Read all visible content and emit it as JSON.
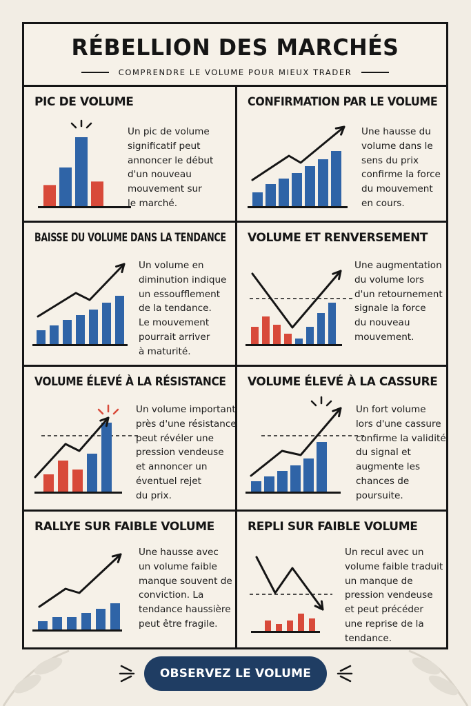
{
  "header": {
    "title": "RÉBELLION DES MARCHÉS",
    "subtitle": "COMPRENDRE LE VOLUME POUR MIEUX TRADER"
  },
  "colors": {
    "blue": "#2f64a7",
    "red": "#d84a3a",
    "ink": "#151515",
    "cta": "#1f3d63",
    "background": "#f2ede4"
  },
  "cells": [
    {
      "id": "pic",
      "title": "PIC DE VOLUME",
      "lines": [
        "Un pic de volume",
        "significatif peut",
        "annoncer le début",
        "d'un nouveau",
        "mouvement sur",
        "le marché."
      ],
      "bars": [
        {
          "v": 30,
          "c": "red"
        },
        {
          "v": 55,
          "c": "blue"
        },
        {
          "v": 98,
          "c": "blue"
        },
        {
          "v": 35,
          "c": "red"
        }
      ],
      "trend_arrow": false,
      "dashed_level": false,
      "spike_marks": "above-peak"
    },
    {
      "id": "confirmation",
      "title": "CONFIRMATION PAR LE VOLUME",
      "lines": [
        "Une hausse du",
        "volume dans le",
        "sens du prix",
        "confirme la force",
        "du mouvement",
        "en cours."
      ],
      "bars": [
        {
          "v": 20,
          "c": "blue"
        },
        {
          "v": 32,
          "c": "blue"
        },
        {
          "v": 40,
          "c": "blue"
        },
        {
          "v": 48,
          "c": "blue"
        },
        {
          "v": 58,
          "c": "blue"
        },
        {
          "v": 68,
          "c": "blue"
        },
        {
          "v": 80,
          "c": "blue"
        }
      ],
      "trend_arrow": "up",
      "dashed_level": false,
      "spike_marks": null
    },
    {
      "id": "baisse",
      "title": "BAISSE DU VOLUME DANS LA TENDANCE",
      "lines": [
        "Un volume en",
        "diminution indique",
        "un essoufflement",
        "de la tendance.",
        "Le mouvement",
        "pourrait arriver",
        "à maturité."
      ],
      "bars": [
        {
          "v": 20,
          "c": "blue"
        },
        {
          "v": 27,
          "c": "blue"
        },
        {
          "v": 35,
          "c": "blue"
        },
        {
          "v": 42,
          "c": "blue"
        },
        {
          "v": 50,
          "c": "blue"
        },
        {
          "v": 60,
          "c": "blue"
        },
        {
          "v": 70,
          "c": "blue"
        }
      ],
      "trend_arrow": "up",
      "dashed_level": false,
      "spike_marks": null
    },
    {
      "id": "renversement",
      "title": "VOLUME ET RENVERSEMENT",
      "lines": [
        "Une augmentation",
        "du volume lors",
        "d'un retournement",
        "signale la force",
        "du nouveau",
        "mouvement."
      ],
      "bars": [
        {
          "v": 25,
          "c": "red"
        },
        {
          "v": 40,
          "c": "red"
        },
        {
          "v": 28,
          "c": "red"
        },
        {
          "v": 15,
          "c": "red"
        },
        {
          "v": 8,
          "c": "blue"
        },
        {
          "v": 25,
          "c": "blue"
        },
        {
          "v": 45,
          "c": "blue"
        },
        {
          "v": 60,
          "c": "blue"
        }
      ],
      "trend_arrow": "v-reversal",
      "dashed_level": true,
      "spike_marks": null
    },
    {
      "id": "resistance",
      "title": "VOLUME ÉLEVÉ À LA RÉSISTANCE",
      "lines": [
        "Un volume important",
        "près d'une résistance",
        "peut révéler une",
        "pression vendeuse",
        "et annoncer un",
        "éventuel rejet",
        "du prix."
      ],
      "bars": [
        {
          "v": 25,
          "c": "red"
        },
        {
          "v": 45,
          "c": "red"
        },
        {
          "v": 32,
          "c": "red"
        },
        {
          "v": 55,
          "c": "blue"
        },
        {
          "v": 100,
          "c": "blue"
        }
      ],
      "trend_arrow": "up",
      "dashed_level": true,
      "spike_marks": "red"
    },
    {
      "id": "cassure",
      "title": "VOLUME ÉLEVÉ À LA CASSURE",
      "lines": [
        "Un fort volume",
        "lors d'une cassure",
        "confirme la validité",
        "du signal et",
        "augmente les",
        "chances de",
        "poursuite."
      ],
      "bars": [
        {
          "v": 15,
          "c": "blue"
        },
        {
          "v": 22,
          "c": "blue"
        },
        {
          "v": 30,
          "c": "blue"
        },
        {
          "v": 38,
          "c": "blue"
        },
        {
          "v": 48,
          "c": "blue"
        },
        {
          "v": 72,
          "c": "blue"
        }
      ],
      "trend_arrow": "up",
      "dashed_level": true,
      "spike_marks": "black"
    },
    {
      "id": "rallye",
      "title": "RALLYE SUR FAIBLE VOLUME",
      "lines": [
        "Une hausse avec",
        "un volume faible",
        "manque souvent de",
        "conviction. La",
        "tendance haussière",
        "peut être fragile."
      ],
      "bars": [
        {
          "v": 12,
          "c": "blue"
        },
        {
          "v": 18,
          "c": "blue"
        },
        {
          "v": 18,
          "c": "blue"
        },
        {
          "v": 24,
          "c": "blue"
        },
        {
          "v": 30,
          "c": "blue"
        },
        {
          "v": 38,
          "c": "blue"
        }
      ],
      "trend_arrow": "up",
      "dashed_level": false,
      "spike_marks": null
    },
    {
      "id": "repli",
      "title": "REPLI SUR FAIBLE VOLUME",
      "lines": [
        "Un recul avec un",
        "volume faible traduit",
        "un manque de",
        "pression vendeuse",
        "et peut précéder",
        "une reprise de la",
        "tendance."
      ],
      "bars": [
        {
          "v": 15,
          "c": "red"
        },
        {
          "v": 10,
          "c": "red"
        },
        {
          "v": 15,
          "c": "red"
        },
        {
          "v": 25,
          "c": "red"
        },
        {
          "v": 18,
          "c": "red"
        }
      ],
      "trend_arrow": "down",
      "dashed_level": true,
      "spike_marks": null
    }
  ],
  "cta": {
    "label": "OBSERVEZ LE VOLUME"
  }
}
